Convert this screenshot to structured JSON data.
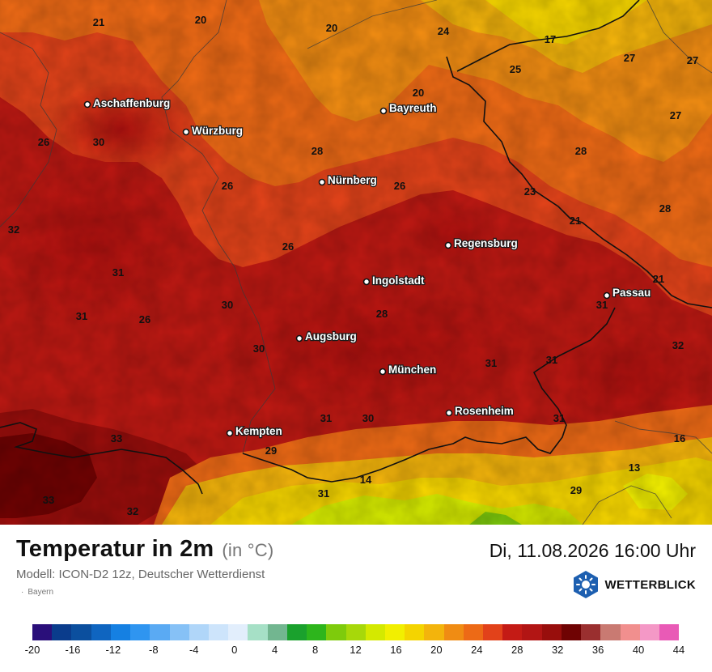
{
  "map": {
    "region": "Bayern",
    "cities": [
      {
        "name": "Aschaffenburg"
      },
      {
        "name": "Würzburg"
      },
      {
        "name": "Bayreuth"
      },
      {
        "name": "Nürnberg"
      },
      {
        "name": "Regensburg"
      },
      {
        "name": "Ingolstadt"
      },
      {
        "name": "Passau"
      },
      {
        "name": "Augsburg"
      },
      {
        "name": "München"
      },
      {
        "name": "Rosenheim"
      },
      {
        "name": "Kempten"
      }
    ],
    "temperatures": [
      "21",
      "20",
      "20",
      "24",
      "17",
      "27",
      "27",
      "25",
      "20",
      "27",
      "26",
      "30",
      "28",
      "26",
      "26",
      "23",
      "28",
      "21",
      "32",
      "26",
      "31",
      "28",
      "30",
      "21",
      "31",
      "26",
      "28",
      "31",
      "30",
      "31",
      "32",
      "31",
      "31",
      "30",
      "31",
      "33",
      "16",
      "29",
      "13",
      "33",
      "31",
      "14",
      "29",
      "32"
    ]
  },
  "footer": {
    "title": "Temperatur in 2m",
    "unit": "(in °C)",
    "datetime": "Di, 11.08.2026 16:00 Uhr",
    "model": "Modell: ICON-D2 12z, Deutscher Wetterdienst",
    "region": "Bayern",
    "brand": "WETTERBLICK"
  },
  "legend": {
    "colors": [
      "#2a0f7a",
      "#0a3c8c",
      "#0b4f9e",
      "#0f65c0",
      "#1580e2",
      "#2f95f0",
      "#5aaaf3",
      "#86c1f6",
      "#b0d6f9",
      "#cde4fb",
      "#e2eefc",
      "#a6e0c6",
      "#72b690",
      "#1aa12d",
      "#2db51c",
      "#7ecb0c",
      "#a7d80a",
      "#d4e900",
      "#f2ef00",
      "#f4d400",
      "#f3b40c",
      "#f08c13",
      "#ed6a16",
      "#e2421a",
      "#c41b15",
      "#b21514",
      "#980e0c",
      "#6f0303",
      "#9a2f2f",
      "#c97a72",
      "#f18f8e",
      "#f498c6",
      "#e95ab6"
    ],
    "ticks": [
      "-20",
      "-16",
      "-12",
      "-8",
      "-4",
      "0",
      "4",
      "8",
      "12",
      "16",
      "20",
      "24",
      "28",
      "32",
      "36",
      "40",
      "44"
    ]
  }
}
